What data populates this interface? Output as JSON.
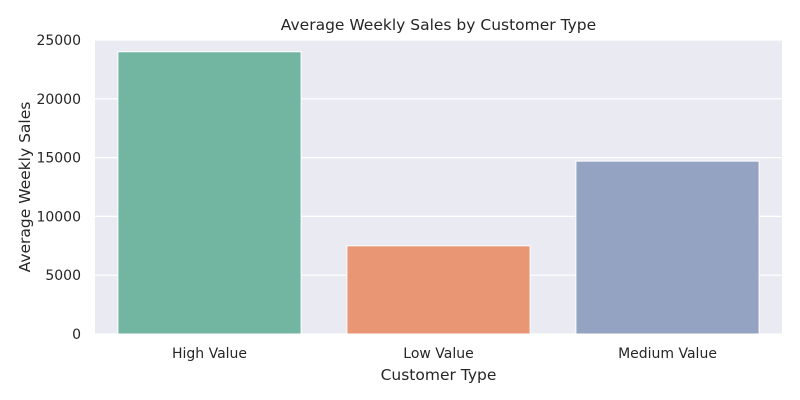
{
  "chart_data": {
    "type": "bar",
    "title": "Average Weekly Sales by Customer Type",
    "xlabel": "Customer Type",
    "ylabel": "Average Weekly Sales",
    "categories": [
      "High Value",
      "Low Value",
      "Medium Value"
    ],
    "values": [
      24000,
      7500,
      14700
    ],
    "colors": [
      "#72b6a1",
      "#e99675",
      "#95a3c3"
    ],
    "ylim": [
      0,
      25000
    ],
    "yticks": [
      0,
      5000,
      10000,
      15000,
      20000,
      25000
    ],
    "grid": true,
    "plot_background": "#eaeaf2",
    "grid_color": "#ffffff"
  }
}
